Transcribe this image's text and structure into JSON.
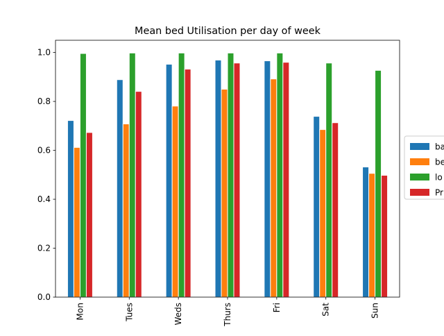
{
  "chart_data": {
    "type": "bar",
    "title": "Mean bed Utilisation per day of week",
    "xlabel": "",
    "ylabel": "",
    "categories": [
      "Mon",
      "Tues",
      "Weds",
      "Thurs",
      "Fri",
      "Sat",
      "Sun"
    ],
    "series": [
      {
        "name": "ba",
        "color": "#1f77b4",
        "values": [
          0.722,
          0.889,
          0.952,
          0.969,
          0.966,
          0.739,
          0.532
        ]
      },
      {
        "name": "be",
        "color": "#ff7f0e",
        "values": [
          0.612,
          0.708,
          0.781,
          0.85,
          0.892,
          0.685,
          0.506
        ]
      },
      {
        "name": "lo",
        "color": "#2ca02c",
        "values": [
          0.996,
          0.998,
          0.998,
          0.998,
          0.998,
          0.957,
          0.927
        ]
      },
      {
        "name": "Pr",
        "color": "#d62728",
        "values": [
          0.673,
          0.841,
          0.932,
          0.957,
          0.96,
          0.713,
          0.498
        ]
      }
    ],
    "ylim": [
      0,
      1.05
    ],
    "yticks": [
      0.0,
      0.2,
      0.4,
      0.6,
      0.8,
      1.0
    ],
    "ytick_labels": [
      "0.0",
      "0.2",
      "0.4",
      "0.6",
      "0.8",
      "1.0"
    ],
    "grid": false,
    "legend_position": "right, partially cut off"
  }
}
